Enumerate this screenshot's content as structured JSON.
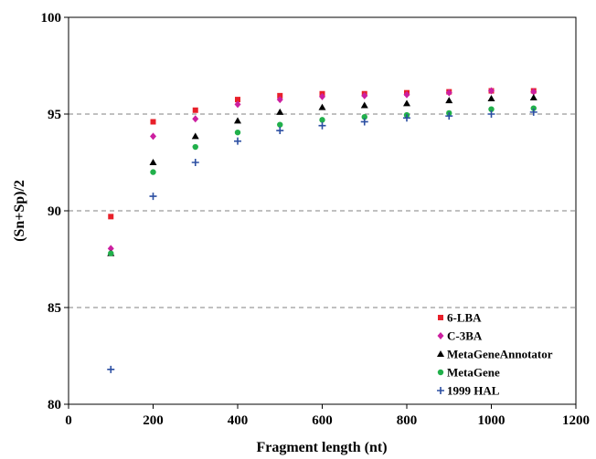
{
  "chart_data": {
    "type": "scatter",
    "xlabel": "Fragment length (nt)",
    "ylabel": "(Sn+Sp)/2",
    "xlim": [
      0,
      1200
    ],
    "ylim": [
      80,
      100
    ],
    "x_ticks": [
      "0",
      "200",
      "400",
      "600",
      "800",
      "1000",
      "1200"
    ],
    "y_ticks": [
      "80",
      "85",
      "90",
      "95",
      "100"
    ],
    "grid": "horizontal dashed",
    "legend_position": "bottom-right",
    "x": [
      100,
      200,
      300,
      400,
      500,
      600,
      700,
      800,
      900,
      1000,
      1100
    ],
    "series": [
      {
        "name": "6-LBA",
        "color": "#e8202a",
        "marker": "square",
        "values": [
          89.7,
          94.6,
          95.2,
          95.75,
          95.95,
          96.05,
          96.05,
          96.1,
          96.15,
          96.2,
          96.2
        ]
      },
      {
        "name": "C-3BA",
        "color": "#cc1fa0",
        "marker": "diamond",
        "values": [
          88.05,
          93.85,
          94.75,
          95.5,
          95.75,
          95.9,
          95.95,
          96.0,
          96.1,
          96.2,
          96.15
        ]
      },
      {
        "name": "MetaGeneAnnotator",
        "color": "#000000",
        "marker": "triangle",
        "values": [
          87.8,
          92.5,
          93.85,
          94.65,
          95.1,
          95.35,
          95.45,
          95.55,
          95.7,
          95.8,
          95.85
        ]
      },
      {
        "name": "MetaGene",
        "color": "#21b04b",
        "marker": "circle",
        "values": [
          87.8,
          92.0,
          93.3,
          94.05,
          94.45,
          94.7,
          94.85,
          94.95,
          95.05,
          95.25,
          95.3
        ]
      },
      {
        "name": "1999 HAL",
        "color": "#2b4ea2",
        "marker": "plus",
        "values": [
          81.8,
          90.75,
          92.5,
          93.6,
          94.15,
          94.4,
          94.6,
          94.8,
          94.9,
          95.0,
          95.1
        ]
      }
    ]
  }
}
